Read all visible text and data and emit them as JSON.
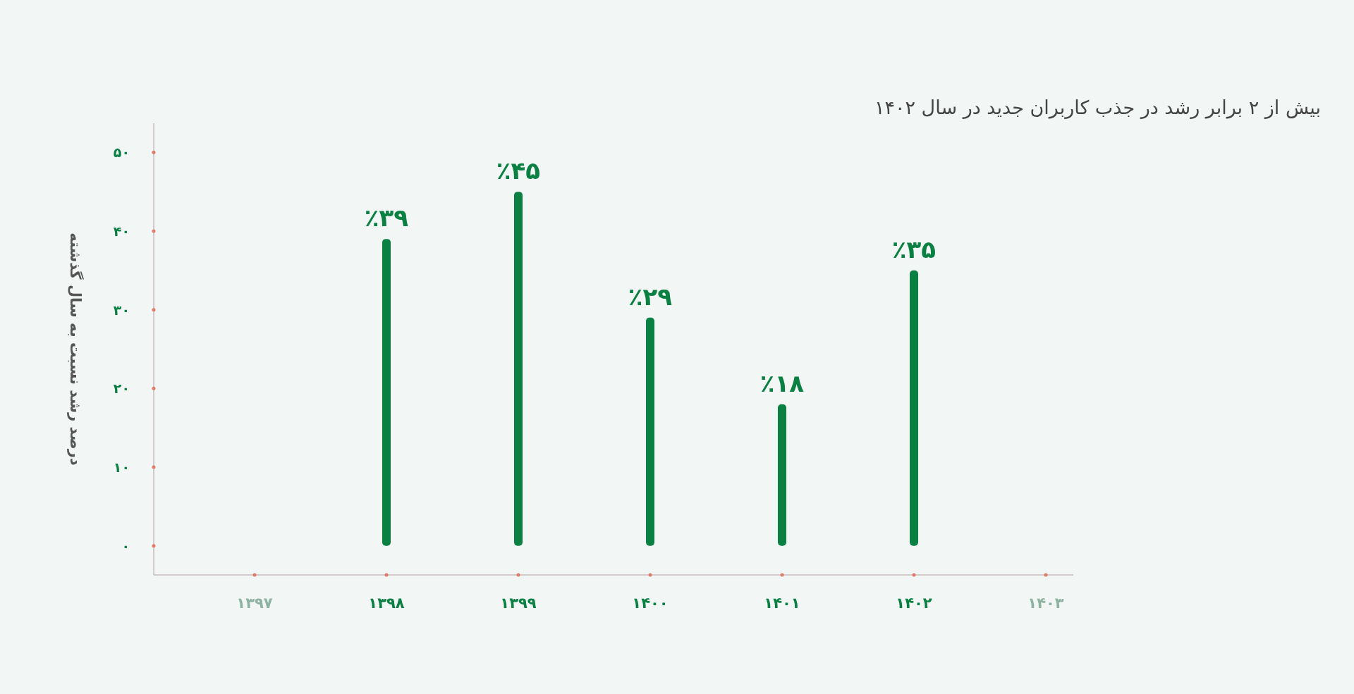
{
  "chart_data": {
    "type": "bar",
    "title": "بیش از ۲ برابر رشد در جذب کاربران جدید در سال ۱۴۰۲",
    "ylabel": "درصد رشد نسبت به سال گذشته",
    "categories": [
      "۱۳۹۷",
      "۱۳۹۸",
      "۱۳۹۹",
      "۱۴۰۰",
      "۱۴۰۱",
      "۱۴۰۲",
      "۱۴۰۳"
    ],
    "values": [
      null,
      39,
      45,
      29,
      18,
      35,
      null
    ],
    "value_labels": [
      null,
      "٪۳۹",
      "٪۴۵",
      "٪۲۹",
      "٪۱۸",
      "٪۳۵",
      null
    ],
    "color": "#0b8043",
    "ylim": [
      -3.7,
      53.7
    ],
    "yticks": [
      {
        "value": 0,
        "label": "۰"
      },
      {
        "value": 10,
        "label": "۱۰"
      },
      {
        "value": 20,
        "label": "۲۰"
      },
      {
        "value": 30,
        "label": "۳۰"
      },
      {
        "value": 40,
        "label": "۴۰"
      },
      {
        "value": 50,
        "label": "۵۰"
      }
    ],
    "grid": false
  }
}
